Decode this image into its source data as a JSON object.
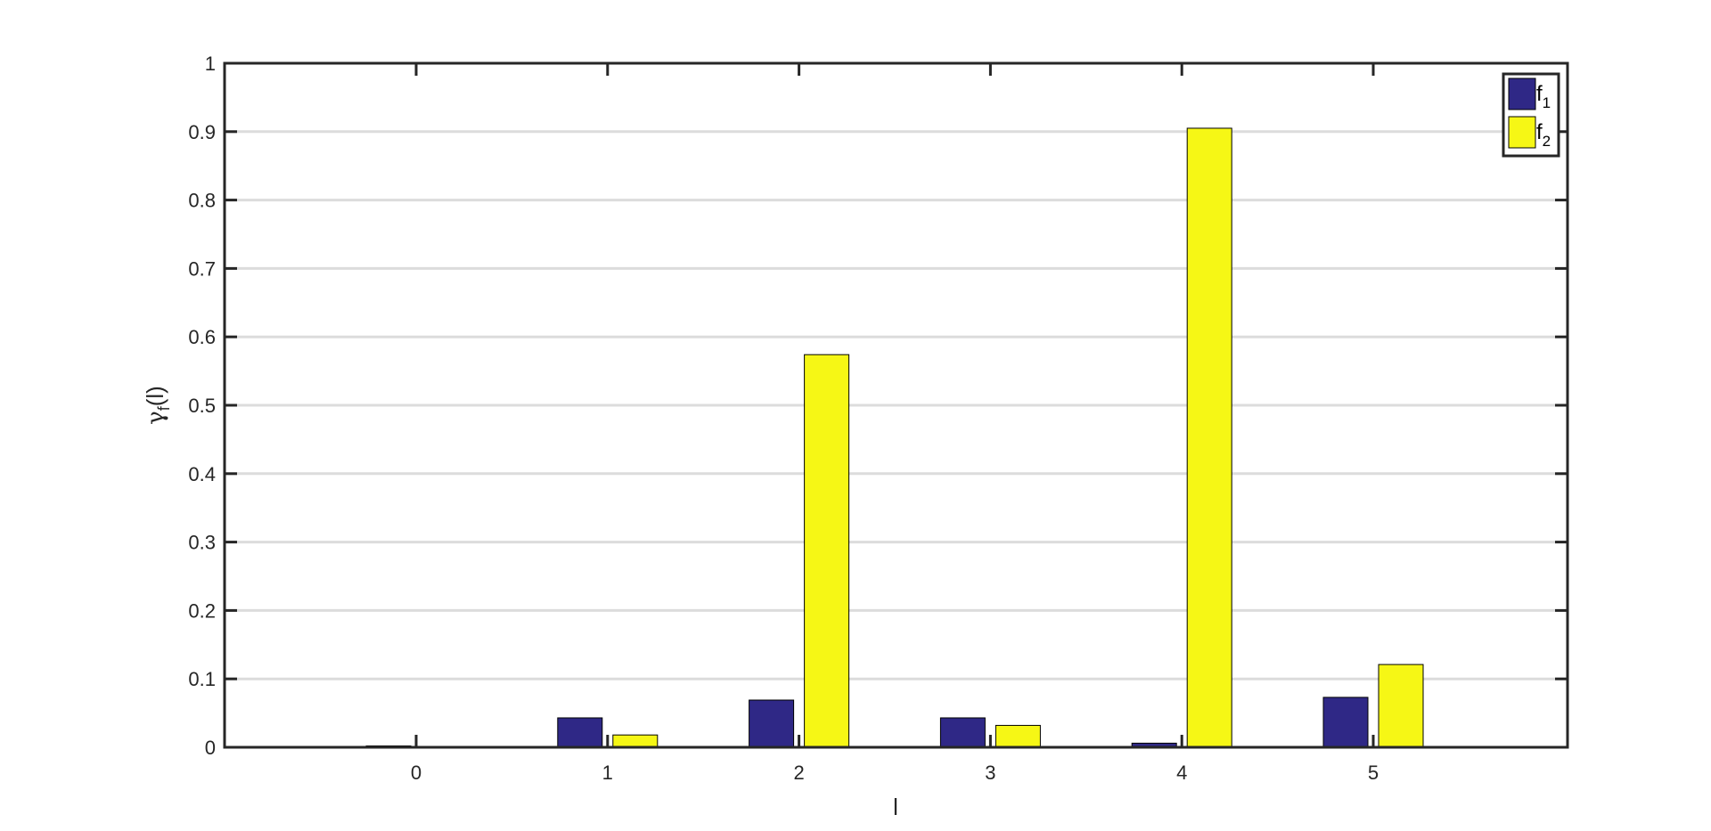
{
  "chart_data": {
    "type": "bar",
    "title": "",
    "categories": [
      "0",
      "1",
      "2",
      "3",
      "4",
      "5"
    ],
    "xlabel": "l",
    "ylabel": {
      "base": "γ",
      "sub": "f",
      "suffix": "(l)"
    },
    "ylim": [
      0,
      1
    ],
    "yticks": [
      "0",
      "0.1",
      "0.2",
      "0.3",
      "0.4",
      "0.5",
      "0.6",
      "0.7",
      "0.8",
      "0.9",
      "1"
    ],
    "grid": "horizontal",
    "legend_position": "top-right",
    "series": [
      {
        "name": "f",
        "name_sub": "1",
        "color": "#2f2886",
        "values": [
          0.002,
          0.043,
          0.069,
          0.043,
          0.006,
          0.073
        ]
      },
      {
        "name": "f",
        "name_sub": "2",
        "color": "#f6f715",
        "values": [
          0.0005,
          0.018,
          0.574,
          0.032,
          0.905,
          0.121
        ]
      }
    ]
  }
}
